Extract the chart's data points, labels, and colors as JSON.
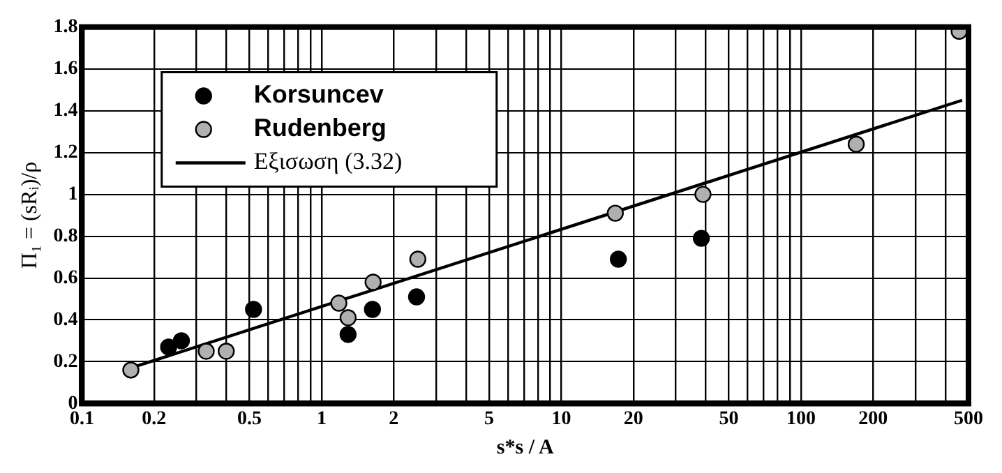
{
  "chart_data": {
    "type": "scatter",
    "xlabel": "s*s / A",
    "ylabel": "Π₁ = (sRᵢ)/ρ",
    "log": "x",
    "grid": true,
    "legend": "top left",
    "xlim": [
      0.1,
      500
    ],
    "ylim": [
      0,
      1.8
    ],
    "xticks": [
      0.1,
      {
        "value": 0.2,
        "label": "0.2"
      },
      {
        "value": 0.3,
        "label": null
      },
      {
        "value": 0.4,
        "label": null
      },
      {
        "value": 0.5,
        "label": "0.5"
      },
      {
        "value": 0.6,
        "label": null
      },
      {
        "value": 0.7,
        "label": null
      },
      {
        "value": 0.8,
        "label": null
      },
      {
        "value": 0.9,
        "label": null
      },
      1,
      2,
      {
        "value": 3,
        "label": null
      },
      {
        "value": 4,
        "label": null
      },
      5,
      {
        "value": 6,
        "label": null
      },
      {
        "value": 7,
        "label": null
      },
      {
        "value": 8,
        "label": null
      },
      {
        "value": 9,
        "label": null
      },
      10,
      20,
      {
        "value": 30,
        "label": null
      },
      {
        "value": 40,
        "label": null
      },
      50,
      {
        "value": 60,
        "label": null
      },
      {
        "value": 70,
        "label": null
      },
      {
        "value": 80,
        "label": null
      },
      {
        "value": 90,
        "label": null
      },
      100,
      200,
      {
        "value": 300,
        "label": null
      },
      {
        "value": 400,
        "label": null
      },
      500
    ],
    "yticks": [
      0,
      0.2,
      0.4,
      0.6,
      0.8,
      1,
      1.2,
      1.4,
      1.6,
      1.8
    ],
    "series": [
      {
        "name": "Korsuncev",
        "marker": "circle",
        "color": "#000000",
        "x": [
          0.23,
          0.26,
          0.52,
          1.29,
          1.63,
          2.49,
          17.3,
          38.4
        ],
        "values": [
          0.27,
          0.3,
          0.45,
          0.33,
          0.45,
          0.51,
          0.69,
          0.79
        ]
      },
      {
        "name": "Rudenberg",
        "marker": "circle",
        "color": "#b0b0b0",
        "x": [
          0.16,
          0.33,
          0.4,
          1.18,
          1.29,
          1.64,
          2.52,
          16.8,
          39,
          170,
          457
        ],
        "values": [
          0.16,
          0.25,
          0.25,
          0.48,
          0.41,
          0.58,
          0.69,
          0.91,
          1.0,
          1.24,
          1.78
        ]
      },
      {
        "name": "Εξισωση (3.32)",
        "type": "line",
        "marker": "none",
        "line_style": "solid",
        "color": "#000000",
        "x": [
          0.16,
          470
        ],
        "values": [
          0.17,
          1.45
        ]
      }
    ]
  }
}
